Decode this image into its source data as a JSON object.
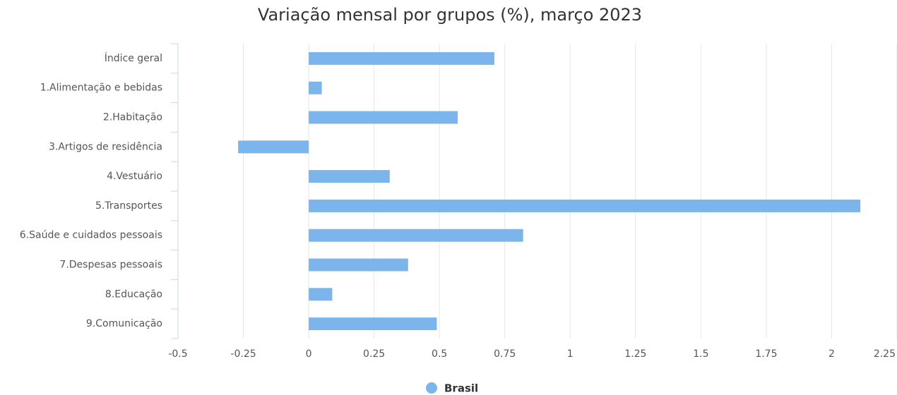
{
  "chart_data": {
    "type": "bar",
    "orientation": "horizontal",
    "title": "Variação mensal por grupos (%), março 2023",
    "categories": [
      "Índice geral",
      "1.Alimentação e bebidas",
      "2.Habitação",
      "3.Artigos de residência",
      "4.Vestuário",
      "5.Transportes",
      "6.Saúde e cuidados pessoais",
      "7.Despesas pessoais",
      "8.Educação",
      "9.Comunicação"
    ],
    "series": [
      {
        "name": "Brasil",
        "color": "#7cb5ec",
        "values": [
          0.71,
          0.05,
          0.57,
          -0.27,
          0.31,
          2.11,
          0.82,
          0.38,
          0.09,
          0.49
        ]
      }
    ],
    "xlim": [
      -0.5,
      2.25
    ],
    "xticks": [
      -0.5,
      -0.25,
      0,
      0.25,
      0.5,
      0.75,
      1,
      1.25,
      1.5,
      1.75,
      2,
      2.25
    ],
    "grid": true,
    "legend": "bottom"
  }
}
